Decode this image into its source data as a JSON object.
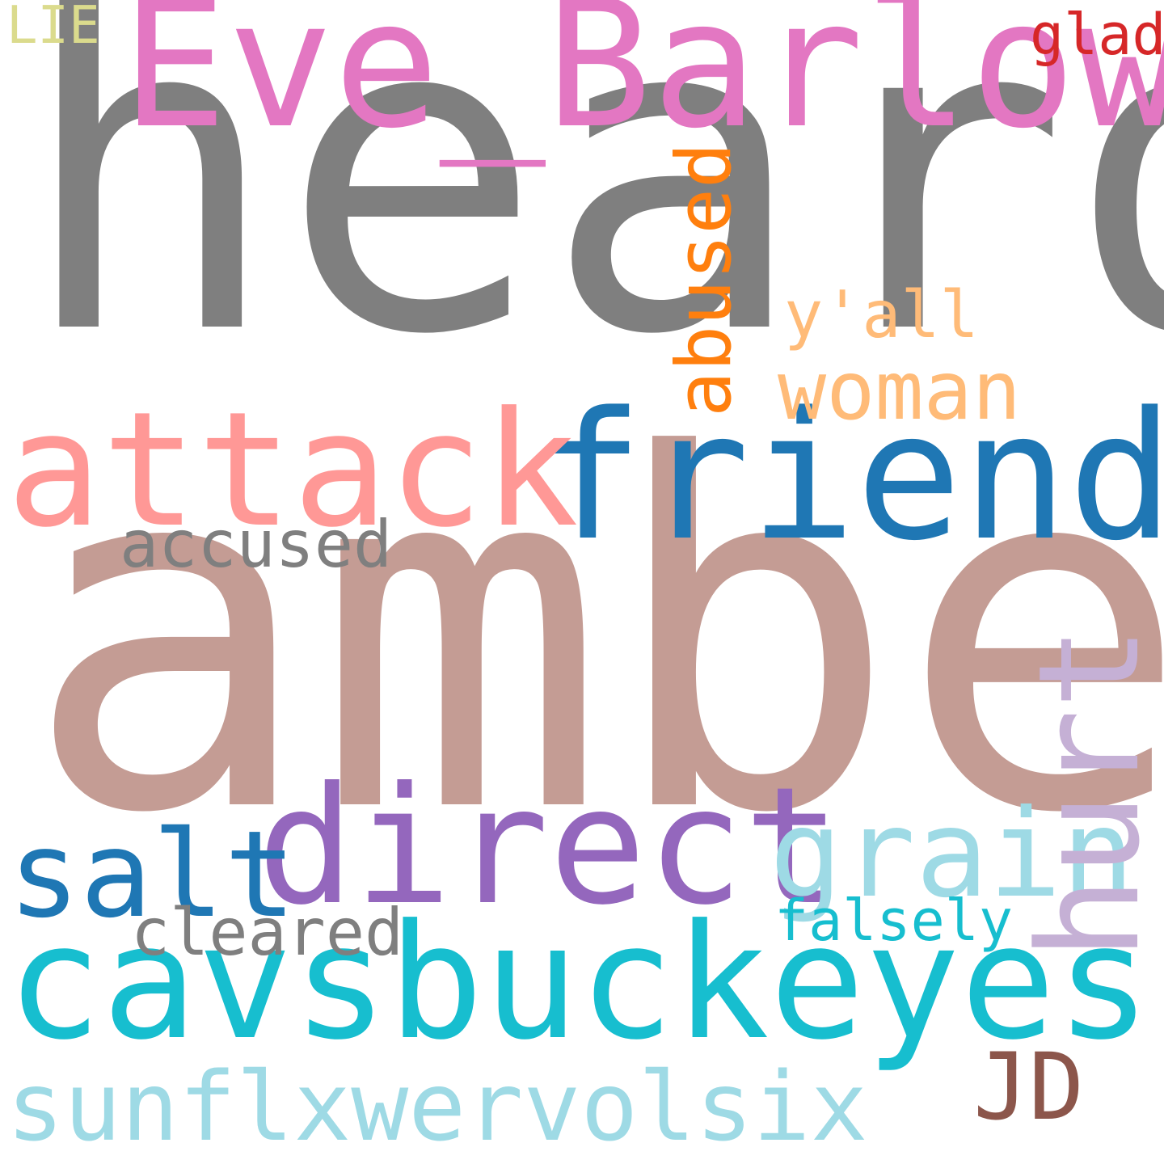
{
  "words": {
    "heard": {
      "text": "heard",
      "color": "#7f7f7f"
    },
    "amber": {
      "text": "amber",
      "color": "#c49c94"
    },
    "eve_barlow": {
      "text": "Eve_Barlow",
      "color": "#e377c2"
    },
    "friends": {
      "text": "friends",
      "color": "#1f77b4"
    },
    "attack": {
      "text": "attack",
      "color": "#ff9896"
    },
    "cavsbuckeyes": {
      "text": "cavsbuckeyes",
      "color": "#17becf"
    },
    "direct": {
      "text": "direct",
      "color": "#9467bd"
    },
    "sunflxwervolsix": {
      "text": "sunflxwervolsix",
      "color": "#9edae5"
    },
    "grain": {
      "text": "grain",
      "color": "#9edae5"
    },
    "hurt": {
      "text": "hurt",
      "color": "#c5b0d5"
    },
    "salt": {
      "text": "salt",
      "color": "#1f77b4"
    },
    "abused": {
      "text": "abused",
      "color": "#ff7f0e"
    },
    "woman": {
      "text": "woman",
      "color": "#ffbb78"
    },
    "jd": {
      "text": "JD",
      "color": "#8c564b"
    },
    "accused": {
      "text": "accused",
      "color": "#7f7f7f"
    },
    "cleared": {
      "text": "cleared",
      "color": "#7f7f7f"
    },
    "falsely": {
      "text": "falsely",
      "color": "#17becf"
    },
    "yall": {
      "text": "y'all",
      "color": "#ffbb78"
    },
    "glad": {
      "text": "glad",
      "color": "#d62728"
    },
    "lie": {
      "text": "LIE",
      "color": "#dbdb8d"
    }
  }
}
